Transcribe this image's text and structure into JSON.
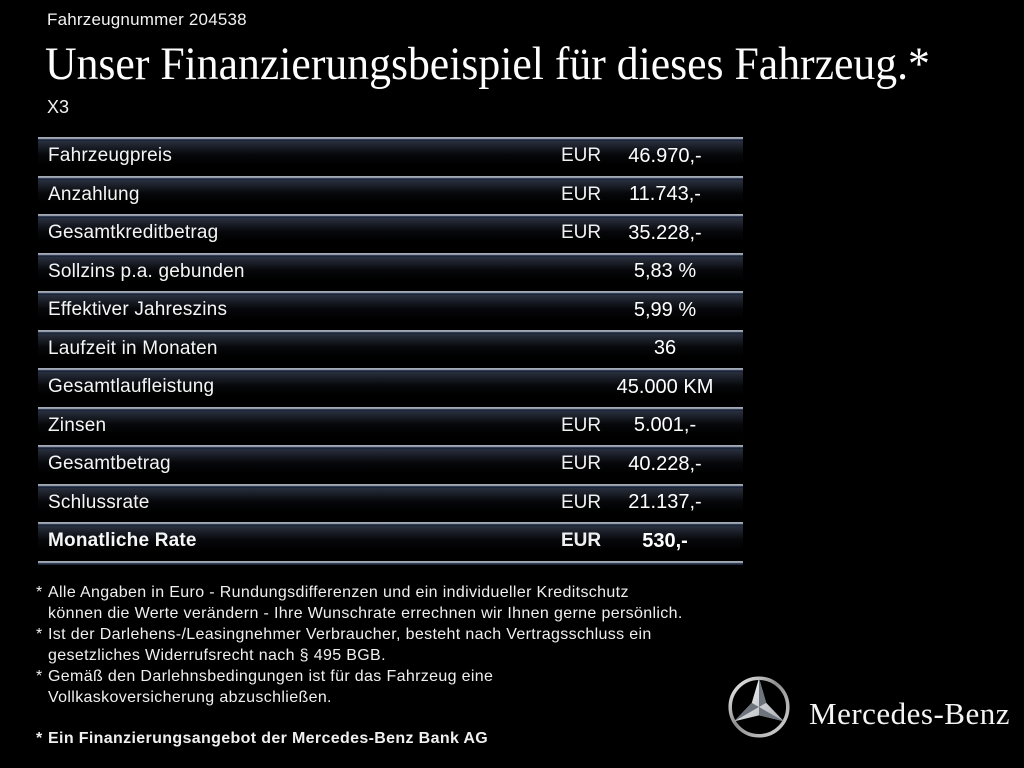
{
  "header": {
    "vehicle_number": "Fahrzeugnummer 204538",
    "title": "Unser Finanzierungsbeispiel für dieses Fahrzeug.*",
    "model": "X3"
  },
  "table": {
    "rows": [
      {
        "label": "Fahrzeugpreis",
        "currency": "EUR",
        "value": "46.970,-",
        "bold": false
      },
      {
        "label": "Anzahlung",
        "currency": "EUR",
        "value": "11.743,-",
        "bold": false
      },
      {
        "label": "Gesamtkreditbetrag",
        "currency": "EUR",
        "value": "35.228,-",
        "bold": false
      },
      {
        "label": "Sollzins p.a. gebunden",
        "currency": "",
        "value": "5,83 %",
        "bold": false
      },
      {
        "label": "Effektiver Jahreszins",
        "currency": "",
        "value": "5,99 %",
        "bold": false
      },
      {
        "label": "Laufzeit in Monaten",
        "currency": "",
        "value": "36",
        "bold": false
      },
      {
        "label": "Gesamtlaufleistung",
        "currency": "",
        "value": "45.000 KM",
        "bold": false
      },
      {
        "label": "Zinsen",
        "currency": "EUR",
        "value": "5.001,-",
        "bold": false
      },
      {
        "label": "Gesamtbetrag",
        "currency": "EUR",
        "value": "40.228,-",
        "bold": false
      },
      {
        "label": "Schlussrate",
        "currency": "EUR",
        "value": "21.137,-",
        "bold": false
      },
      {
        "label": "Monatliche Rate",
        "currency": "EUR",
        "value": "530,-",
        "bold": true
      }
    ]
  },
  "footnotes": {
    "marker": "*",
    "items": [
      {
        "text": "Alle Angaben in Euro - Rundungsdifferenzen und ein individueller Kreditschutz\nkönnen die Werte verändern - Ihre Wunschrate errechnen wir Ihnen gerne persönlich."
      },
      {
        "text": "Ist der Darlehens-/Leasingnehmer Verbraucher, besteht nach Vertragsschluss ein\ngesetzliches Widerrufsrecht nach § 495 BGB."
      },
      {
        "text": "Gemäß den Darlehnsbedingungen ist für das Fahrzeug eine\nVollkaskoversicherung abzuschließen."
      }
    ],
    "provider_note": "Ein Finanzierungsangebot der Mercedes-Benz Bank AG"
  },
  "branding": {
    "wordmark": "Mercedes-Benz",
    "logo": "mercedes-star-icon"
  },
  "colors": {
    "background": "#000000",
    "text": "#ffffff",
    "separator_light": "#8d95a1",
    "separator_dark": "#141d30",
    "row_gradient_top": "#3e485e"
  }
}
